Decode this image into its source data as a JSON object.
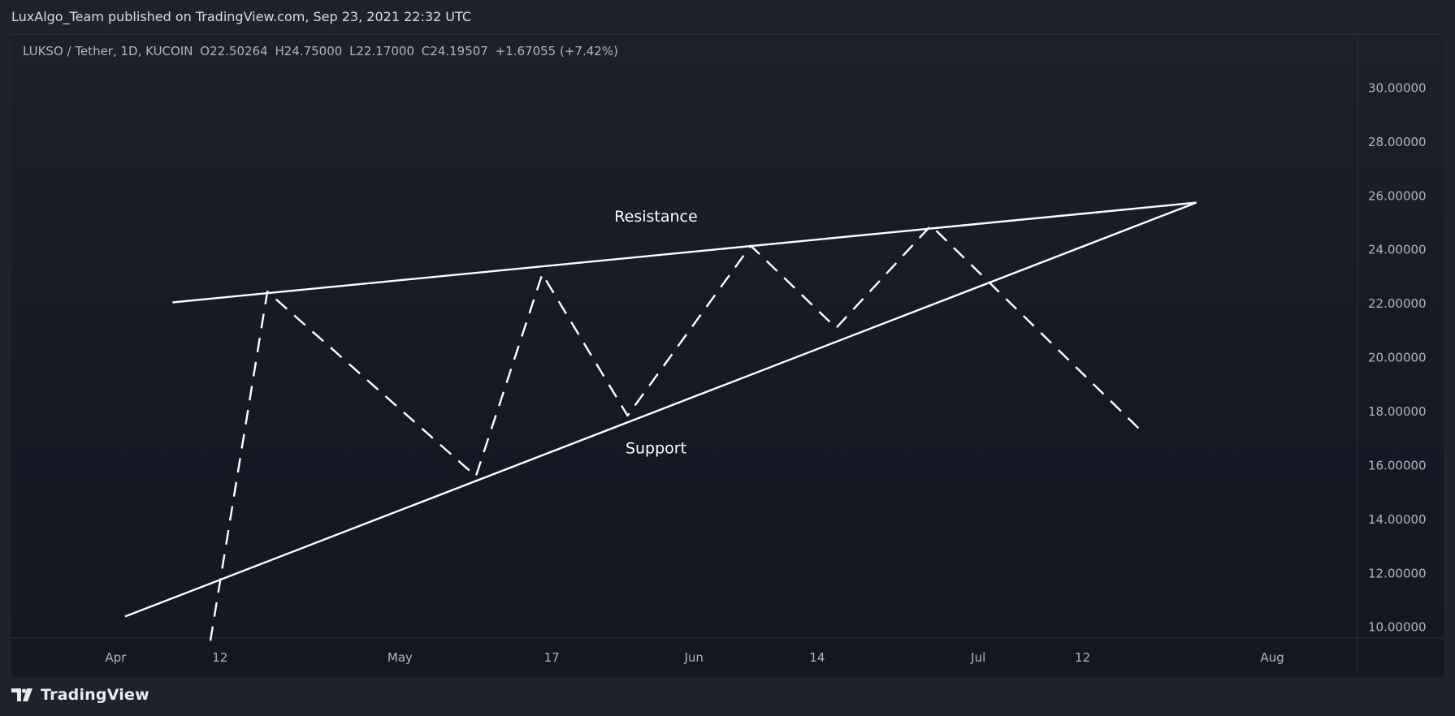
{
  "header": {
    "publisher_line": "LuxAlgo_Team published on TradingView.com, Sep 23, 2021 22:32 UTC"
  },
  "legend": {
    "symbol": "LUKSO / Tether, 1D, KUCOIN",
    "open": "O22.50264",
    "high": "H24.75000",
    "low": "L22.17000",
    "close": "C24.19507",
    "change": "+1.67055 (+7.42%)"
  },
  "footer": {
    "brand": "TradingView"
  },
  "colors": {
    "background": "#131722",
    "text": "#b2b5be",
    "lines": "#ffffff"
  },
  "chart_data": {
    "type": "line",
    "title": "",
    "xlabel": "",
    "ylabel": "",
    "ylim": [
      9.6,
      32.0
    ],
    "y_ticks": [
      10,
      12,
      14,
      16,
      18,
      20,
      22,
      24,
      26,
      28,
      30
    ],
    "y_tick_labels": [
      "10.00000",
      "12.00000",
      "14.00000",
      "16.00000",
      "18.00000",
      "20.00000",
      "22.00000",
      "24.00000",
      "26.00000",
      "28.00000",
      "30.00000"
    ],
    "x_tick_labels": [
      "Apr",
      "12",
      "May",
      "17",
      "Jun",
      "14",
      "Jul",
      "12",
      "Aug"
    ],
    "x_ticks": [
      "2021-04-01",
      "2021-04-12",
      "2021-05-01",
      "2021-05-17",
      "2021-06-01",
      "2021-06-14",
      "2021-07-01",
      "2021-07-12",
      "2021-08-01"
    ],
    "xlim": [
      "2021-03-21",
      "2021-08-10"
    ],
    "grid": false,
    "series": [
      {
        "name": "Resistance",
        "style": "solid",
        "points": [
          [
            "2021-04-07",
            22.05
          ],
          [
            "2021-07-24",
            25.75
          ]
        ]
      },
      {
        "name": "Support",
        "style": "solid",
        "points": [
          [
            "2021-04-02",
            10.4
          ],
          [
            "2021-07-24",
            25.75
          ]
        ]
      },
      {
        "name": "",
        "style": "dashed",
        "points": [
          [
            "2021-04-11",
            9.5
          ],
          [
            "2021-04-17",
            22.45
          ],
          [
            "2021-05-09",
            15.6
          ],
          [
            "2021-05-16",
            23.1
          ],
          [
            "2021-05-25",
            17.85
          ],
          [
            "2021-06-07",
            24.15
          ],
          [
            "2021-06-16",
            21.1
          ],
          [
            "2021-06-26",
            24.9
          ],
          [
            "2021-07-18",
            17.35
          ]
        ]
      }
    ],
    "annotations": [
      {
        "text": "Resistance",
        "x": "2021-05-28",
        "y": 25.05
      },
      {
        "text": "Support",
        "x": "2021-05-28",
        "y": 16.45
      }
    ]
  }
}
